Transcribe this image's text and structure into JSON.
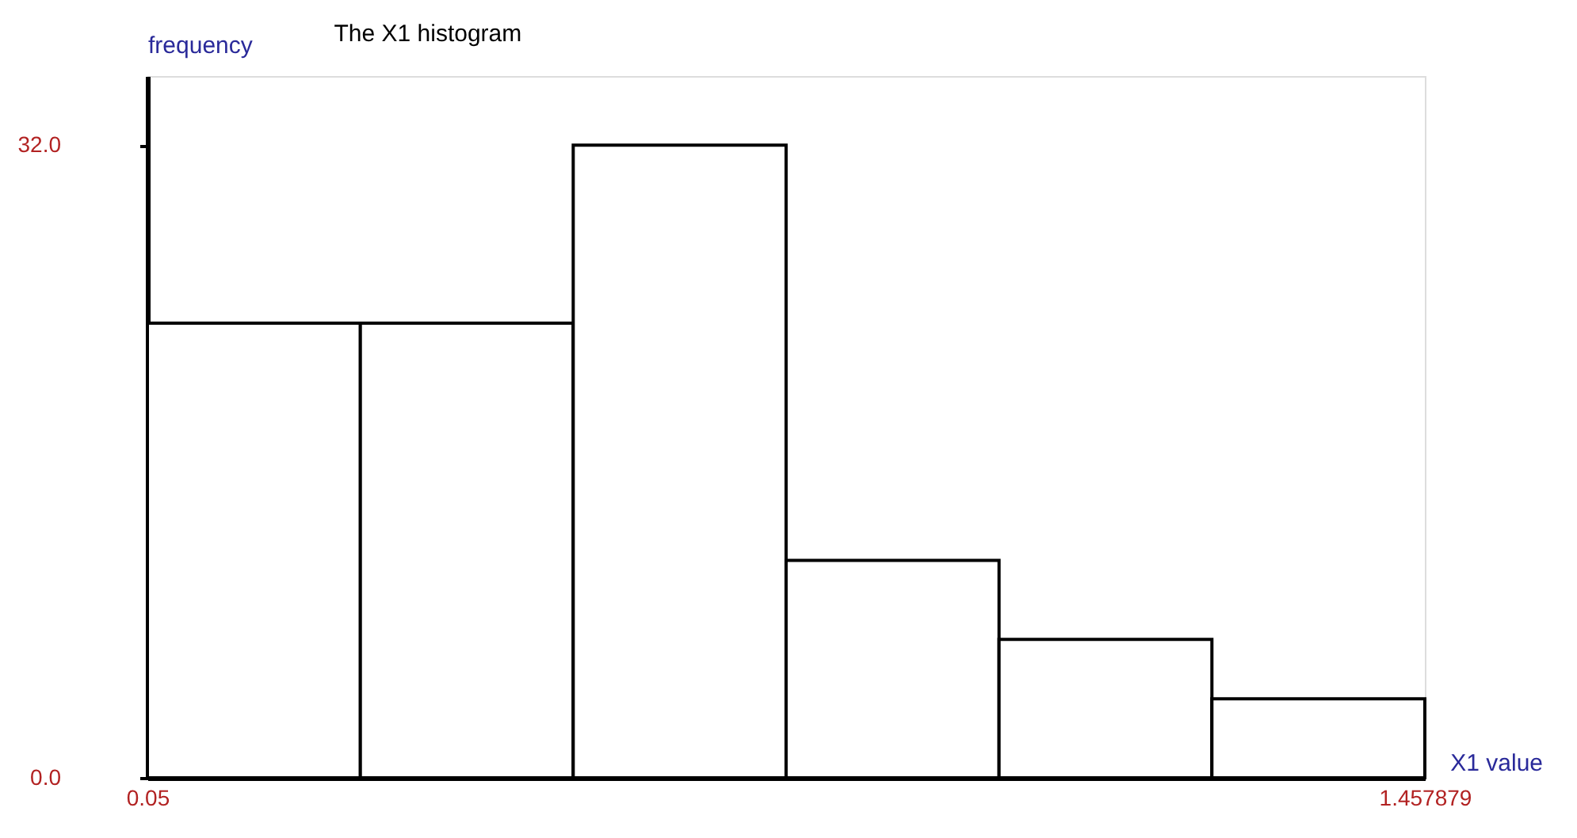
{
  "chart_data": {
    "type": "histogram",
    "title": "The X1 histogram",
    "xlabel": "X1 value",
    "ylabel": "frequency",
    "bins": [
      0.05,
      0.2847,
      0.5193,
      0.7539,
      0.9886,
      1.2232,
      1.457879
    ],
    "values": [
      23,
      23,
      32,
      11,
      7,
      4
    ],
    "color": "#ffffff",
    "xlim": [
      0.05,
      1.457879
    ],
    "xticks": [
      0.05,
      1.457879
    ],
    "ylim": [
      0,
      35.5
    ],
    "yticks": [
      {
        "value": 0,
        "label": "0.0"
      },
      {
        "value": 32,
        "label": "32.0"
      }
    ]
  }
}
